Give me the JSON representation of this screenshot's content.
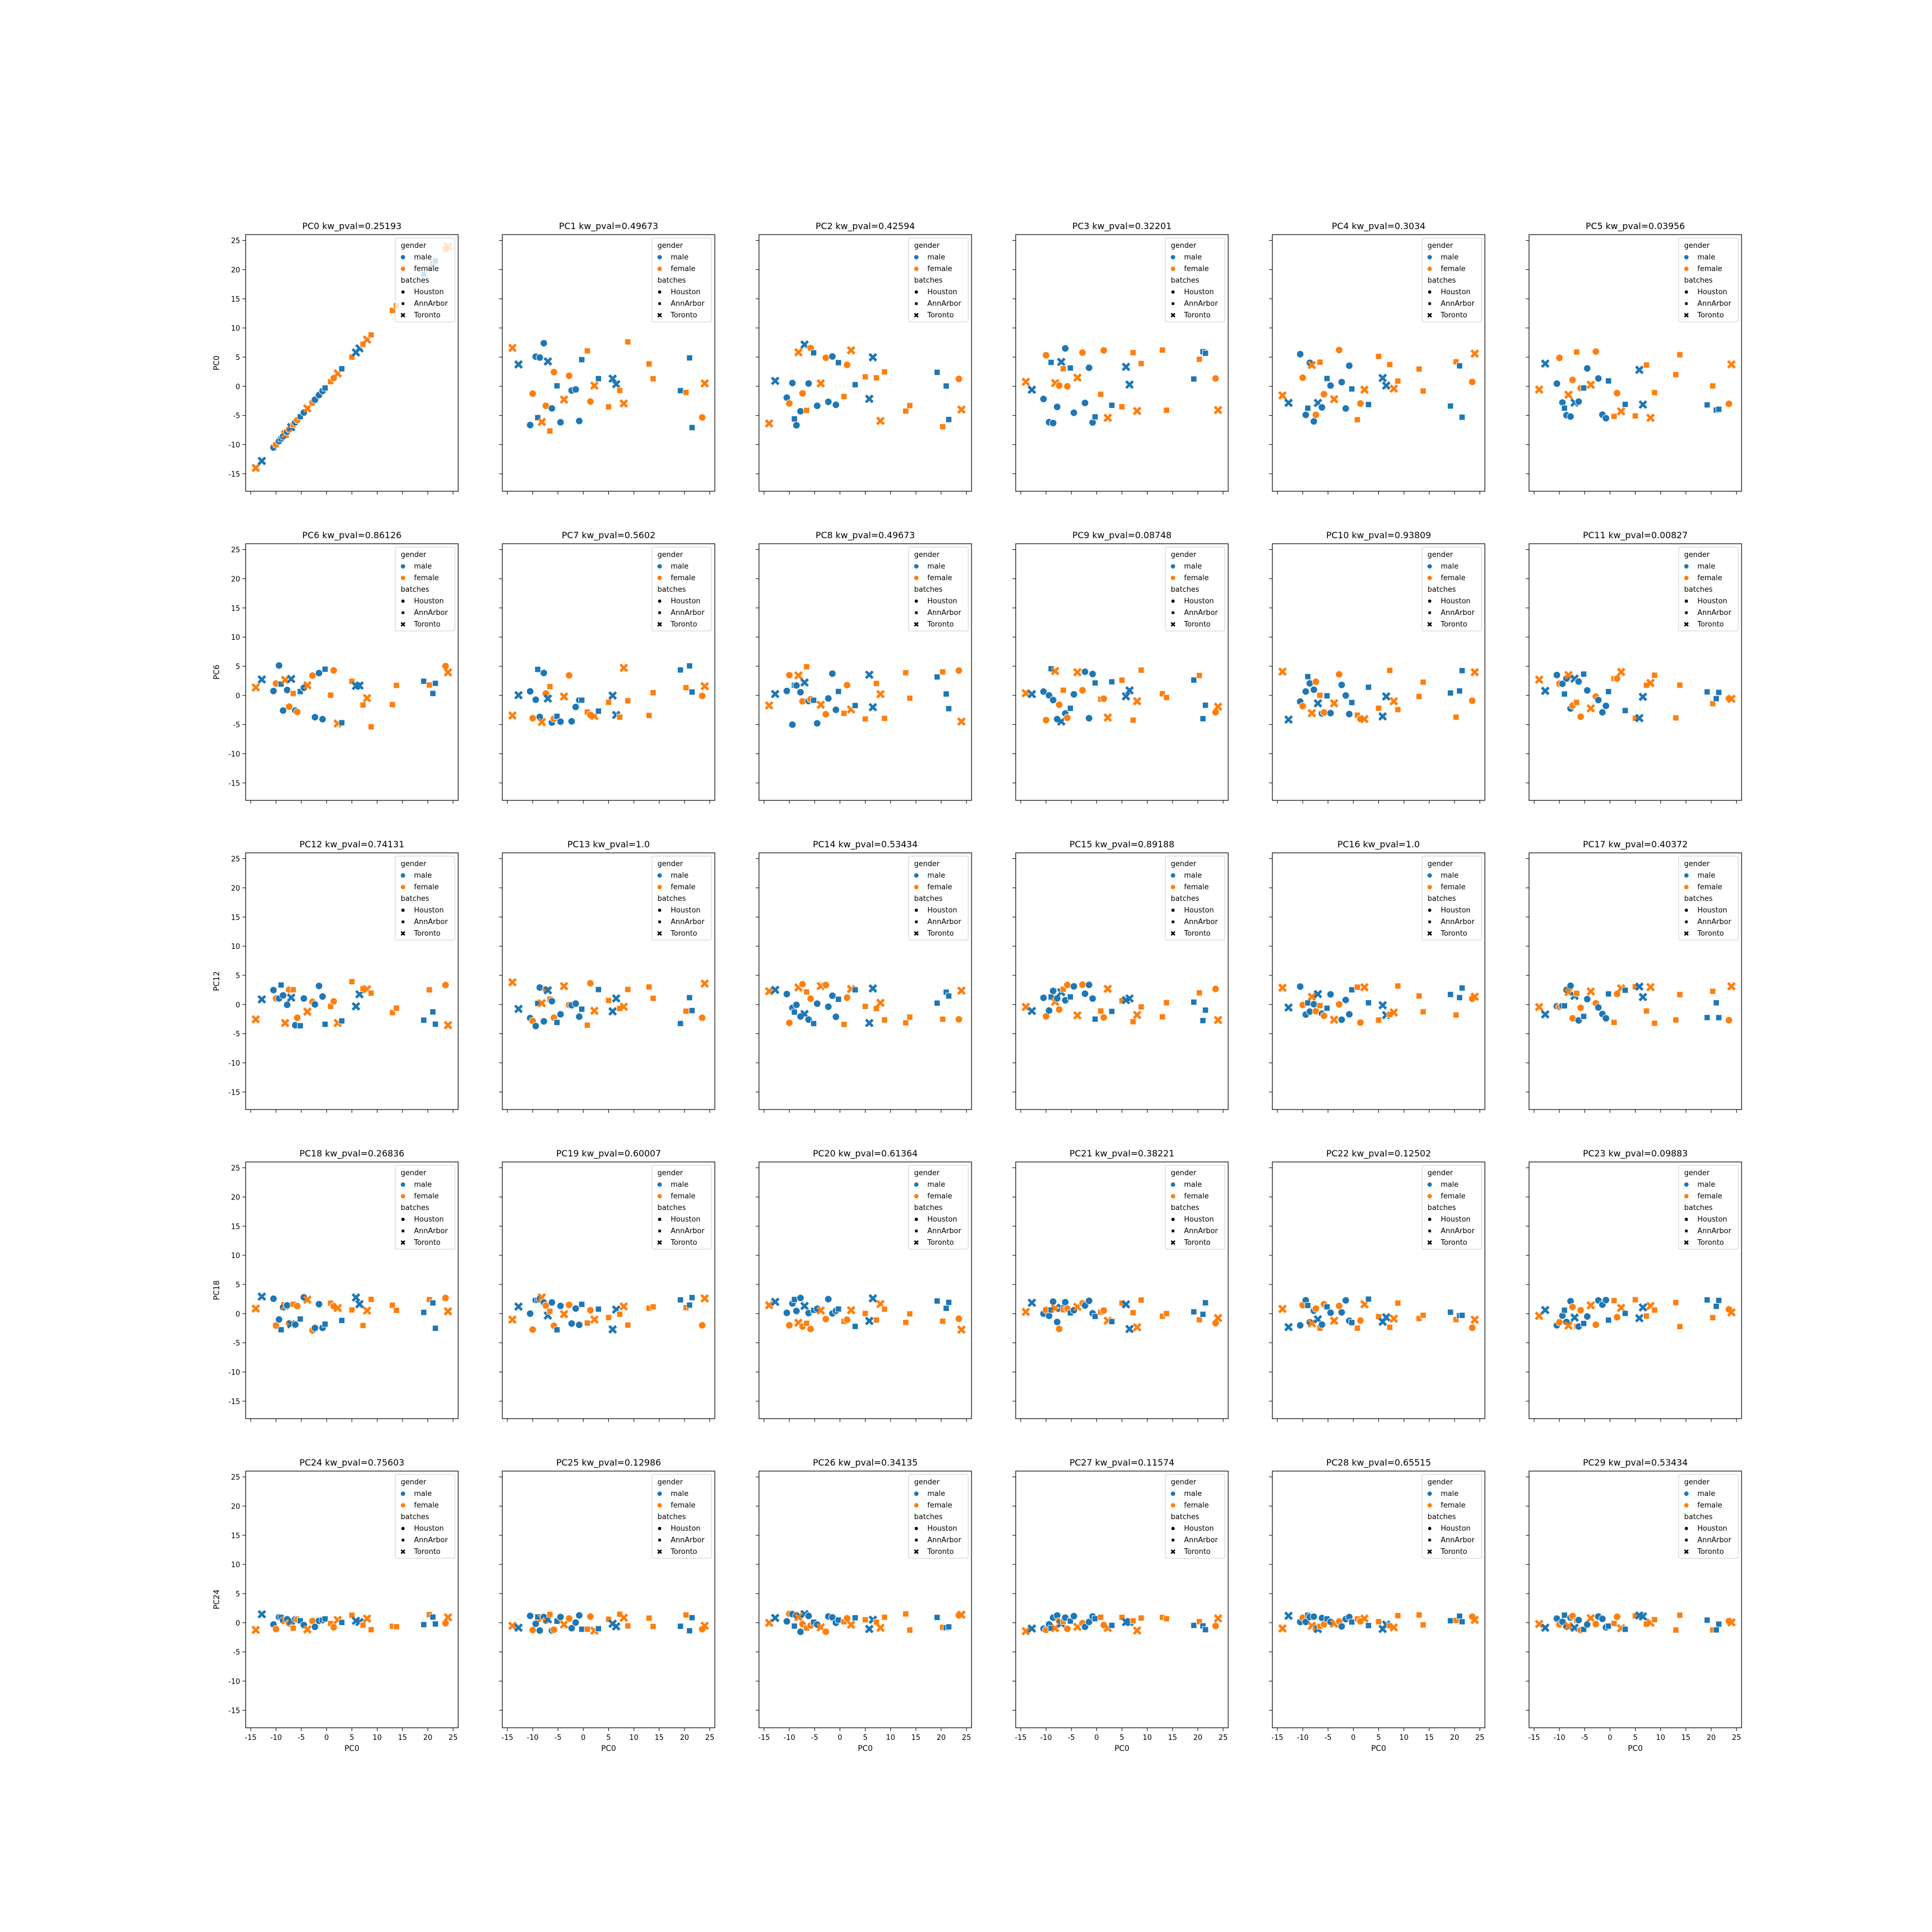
{
  "palette": {
    "male": "#1f77b4",
    "female": "#ff7f0e",
    "frame": "#000000",
    "legend_frame": "#cccccc"
  },
  "legend": {
    "gender_title": "gender",
    "gender_items": [
      "male",
      "female"
    ],
    "batch_title": "batches",
    "batch_items": [
      "Houston",
      "AnnArbor",
      "Toronto"
    ],
    "batch_markers": [
      "circle",
      "square",
      "x"
    ]
  },
  "shared_axes": {
    "xlabel": "PC0",
    "xlim": [
      -16,
      26
    ],
    "ylim": [
      -18,
      26
    ],
    "xticks": [
      -15,
      -10,
      -5,
      0,
      5,
      10,
      15,
      20,
      25
    ],
    "yticks": [
      -15,
      -10,
      -5,
      0,
      5,
      10,
      15,
      20,
      25
    ],
    "row_ylabels": [
      "PC0",
      "PC6",
      "PC12",
      "PC18",
      "PC24"
    ]
  },
  "chart_data": {
    "type": "scatter",
    "layout": "grid 5 rows x 6 columns, shared x and y axes",
    "x": "PC0",
    "hue": "gender",
    "style": "batches",
    "ylim": [
      -18,
      26
    ],
    "xlim": [
      -16,
      26
    ],
    "legend_position": "upper right",
    "panels": [
      {
        "component": "PC0",
        "title": "PC0 kw_pval=0.25193",
        "spread": 1
      },
      {
        "component": "PC1",
        "title": "PC1 kw_pval=0.49673",
        "spread": 0.65
      },
      {
        "component": "PC2",
        "title": "PC2 kw_pval=0.42594",
        "spread": 0.6
      },
      {
        "component": "PC3",
        "title": "PC3 kw_pval=0.32201",
        "spread": 0.55
      },
      {
        "component": "PC4",
        "title": "PC4 kw_pval=0.3034",
        "spread": 0.52
      },
      {
        "component": "PC5",
        "title": "PC5 kw_pval=0.03956",
        "spread": 0.5
      },
      {
        "component": "PC6",
        "title": "PC6 kw_pval=0.86126",
        "spread": 0.45
      },
      {
        "component": "PC7",
        "title": "PC7 kw_pval=0.5602",
        "spread": 0.43
      },
      {
        "component": "PC8",
        "title": "PC8 kw_pval=0.49673",
        "spread": 0.42
      },
      {
        "component": "PC9",
        "title": "PC9 kw_pval=0.08748",
        "spread": 0.4
      },
      {
        "component": "PC10",
        "title": "PC10 kw_pval=0.93809",
        "spread": 0.36
      },
      {
        "component": "PC11",
        "title": "PC11 kw_pval=0.00827",
        "spread": 0.35
      },
      {
        "component": "PC12",
        "title": "PC12 kw_pval=0.74131",
        "spread": 0.33
      },
      {
        "component": "PC13",
        "title": "PC13 kw_pval=1.0",
        "spread": 0.32
      },
      {
        "component": "PC14",
        "title": "PC14 kw_pval=0.53434",
        "spread": 0.3
      },
      {
        "component": "PC15",
        "title": "PC15 kw_pval=0.89188",
        "spread": 0.29
      },
      {
        "component": "PC16",
        "title": "PC16 kw_pval=1.0",
        "spread": 0.28
      },
      {
        "component": "PC17",
        "title": "PC17 kw_pval=0.40372",
        "spread": 0.27
      },
      {
        "component": "PC18",
        "title": "PC18 kw_pval=0.26836",
        "spread": 0.25
      },
      {
        "component": "PC19",
        "title": "PC19 kw_pval=0.60007",
        "spread": 0.24
      },
      {
        "component": "PC20",
        "title": "PC20 kw_pval=0.61364",
        "spread": 0.23
      },
      {
        "component": "PC21",
        "title": "PC21 kw_pval=0.38221",
        "spread": 0.22
      },
      {
        "component": "PC22",
        "title": "PC22 kw_pval=0.12502",
        "spread": 0.21
      },
      {
        "component": "PC23",
        "title": "PC23 kw_pval=0.09883",
        "spread": 0.2
      },
      {
        "component": "PC24",
        "title": "PC24 kw_pval=0.75603",
        "spread": 0.14
      },
      {
        "component": "PC25",
        "title": "PC25 kw_pval=0.12986",
        "spread": 0.13
      },
      {
        "component": "PC26",
        "title": "PC26 kw_pval=0.34135",
        "spread": 0.13
      },
      {
        "component": "PC27",
        "title": "PC27 kw_pval=0.11574",
        "spread": 0.12
      },
      {
        "component": "PC28",
        "title": "PC28 kw_pval=0.65515",
        "spread": 0.12
      },
      {
        "component": "PC29",
        "title": "PC29 kw_pval=0.53434",
        "spread": 0.11
      }
    ],
    "samples": [
      {
        "x": -14.0,
        "gender": "female",
        "batch": "Toronto",
        "y": -14.0
      },
      {
        "x": -12.8,
        "gender": "male",
        "batch": "Toronto",
        "y": -12.8
      },
      {
        "x": -10.5,
        "gender": "male",
        "batch": "Houston",
        "y": -10.5
      },
      {
        "x": -10.0,
        "gender": "female",
        "batch": "Houston",
        "y": -10.0
      },
      {
        "x": -9.4,
        "gender": "male",
        "batch": "Houston",
        "y": -9.4
      },
      {
        "x": -9.0,
        "gender": "male",
        "batch": "AnnArbor",
        "y": -9.0
      },
      {
        "x": -8.6,
        "gender": "male",
        "batch": "Houston",
        "y": -8.6
      },
      {
        "x": -8.2,
        "gender": "female",
        "batch": "Toronto",
        "y": -8.2
      },
      {
        "x": -7.8,
        "gender": "male",
        "batch": "Houston",
        "y": -7.8
      },
      {
        "x": -7.4,
        "gender": "female",
        "batch": "Houston",
        "y": -7.4
      },
      {
        "x": -7.0,
        "gender": "male",
        "batch": "Toronto",
        "y": -7.0
      },
      {
        "x": -6.6,
        "gender": "female",
        "batch": "AnnArbor",
        "y": -6.6
      },
      {
        "x": -6.2,
        "gender": "male",
        "batch": "Houston",
        "y": -6.2
      },
      {
        "x": -5.8,
        "gender": "female",
        "batch": "Houston",
        "y": -5.8
      },
      {
        "x": -5.2,
        "gender": "male",
        "batch": "AnnArbor",
        "y": -5.2
      },
      {
        "x": -4.5,
        "gender": "male",
        "batch": "Houston",
        "y": -4.5
      },
      {
        "x": -3.8,
        "gender": "female",
        "batch": "Toronto",
        "y": -3.8
      },
      {
        "x": -2.8,
        "gender": "female",
        "batch": "Houston",
        "y": -2.8
      },
      {
        "x": -2.3,
        "gender": "male",
        "batch": "Houston",
        "y": -2.3
      },
      {
        "x": -1.5,
        "gender": "male",
        "batch": "Houston",
        "y": -1.5
      },
      {
        "x": -0.8,
        "gender": "male",
        "batch": "Houston",
        "y": -0.8
      },
      {
        "x": -0.3,
        "gender": "male",
        "batch": "AnnArbor",
        "y": -0.3
      },
      {
        "x": 0.8,
        "gender": "female",
        "batch": "AnnArbor",
        "y": 0.8
      },
      {
        "x": 1.4,
        "gender": "female",
        "batch": "Houston",
        "y": 1.4
      },
      {
        "x": 2.2,
        "gender": "female",
        "batch": "Toronto",
        "y": 2.2
      },
      {
        "x": 3.0,
        "gender": "male",
        "batch": "AnnArbor",
        "y": 3.0
      },
      {
        "x": 5.0,
        "gender": "female",
        "batch": "AnnArbor",
        "y": 5.0
      },
      {
        "x": 5.8,
        "gender": "male",
        "batch": "Toronto",
        "y": 5.8
      },
      {
        "x": 6.5,
        "gender": "male",
        "batch": "Toronto",
        "y": 6.5
      },
      {
        "x": 7.2,
        "gender": "female",
        "batch": "AnnArbor",
        "y": 7.2
      },
      {
        "x": 8.0,
        "gender": "female",
        "batch": "Toronto",
        "y": 8.0
      },
      {
        "x": 8.8,
        "gender": "female",
        "batch": "AnnArbor",
        "y": 8.8
      },
      {
        "x": 13.0,
        "gender": "female",
        "batch": "AnnArbor",
        "y": 13.0
      },
      {
        "x": 13.8,
        "gender": "female",
        "batch": "AnnArbor",
        "y": 13.8
      },
      {
        "x": 19.2,
        "gender": "male",
        "batch": "AnnArbor",
        "y": 19.2
      },
      {
        "x": 20.3,
        "gender": "female",
        "batch": "AnnArbor",
        "y": 20.3
      },
      {
        "x": 21.0,
        "gender": "male",
        "batch": "AnnArbor",
        "y": 21.0
      },
      {
        "x": 21.5,
        "gender": "male",
        "batch": "AnnArbor",
        "y": 21.5
      },
      {
        "x": 23.5,
        "gender": "female",
        "batch": "Houston",
        "y": 23.5
      },
      {
        "x": 24.0,
        "gender": "female",
        "batch": "Toronto",
        "y": 24.0
      }
    ]
  }
}
